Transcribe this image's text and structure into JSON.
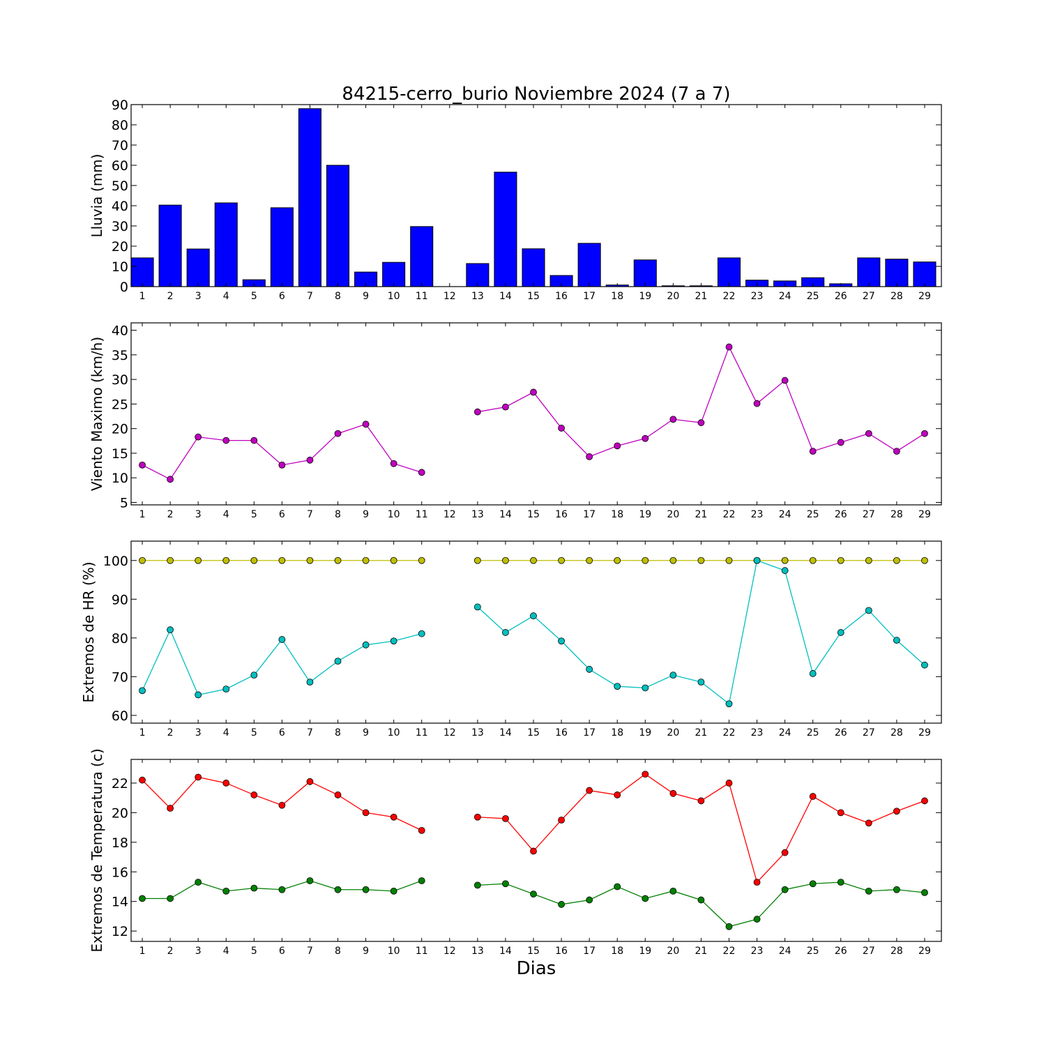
{
  "figure": {
    "title": "84215-cerro_burio Noviembre 2024  (7 a 7)",
    "xlabel": "Dias"
  },
  "chart_data": [
    {
      "type": "bar",
      "ylabel": "Lluvia (mm)",
      "ylim": [
        0,
        90
      ],
      "yticks": [
        0,
        10,
        20,
        30,
        40,
        50,
        60,
        70,
        80,
        90
      ],
      "categories": [
        1,
        2,
        3,
        4,
        5,
        6,
        7,
        8,
        9,
        10,
        11,
        12,
        13,
        14,
        15,
        16,
        17,
        18,
        19,
        20,
        21,
        22,
        23,
        24,
        25,
        26,
        27,
        28,
        29
      ],
      "color": "#0000ff",
      "values": [
        14.2,
        40.3,
        18.6,
        41.4,
        3.4,
        39.0,
        88.0,
        60.0,
        7.2,
        12.0,
        29.7,
        0,
        11.4,
        56.6,
        18.7,
        5.5,
        21.4,
        0.8,
        13.2,
        0.4,
        0.4,
        14.2,
        3.2,
        2.8,
        4.4,
        1.4,
        14.2,
        13.6,
        12.2
      ]
    },
    {
      "type": "line",
      "ylabel": "Viento Maximo (km/h)",
      "ylim": [
        4.5,
        41.5
      ],
      "yticks": [
        5,
        10,
        15,
        20,
        25,
        30,
        35,
        40
      ],
      "categories": [
        1,
        2,
        3,
        4,
        5,
        6,
        7,
        8,
        9,
        10,
        11,
        12,
        13,
        14,
        15,
        16,
        17,
        18,
        19,
        20,
        21,
        22,
        23,
        24,
        25,
        26,
        27,
        28,
        29
      ],
      "series": [
        {
          "color": "#bf00bf",
          "values": [
            12.6,
            9.7,
            18.3,
            17.6,
            17.6,
            12.6,
            13.6,
            19.0,
            20.9,
            12.9,
            11.1,
            null,
            23.4,
            24.4,
            27.4,
            20.1,
            14.3,
            16.5,
            18.0,
            21.9,
            21.2,
            36.6,
            25.1,
            29.8,
            15.4,
            17.2,
            19.0,
            15.4,
            19.0
          ]
        }
      ]
    },
    {
      "type": "line",
      "ylabel": "Extremos de HR (%)",
      "ylim": [
        58,
        105
      ],
      "yticks": [
        60,
        70,
        80,
        90,
        100
      ],
      "categories": [
        1,
        2,
        3,
        4,
        5,
        6,
        7,
        8,
        9,
        10,
        11,
        12,
        13,
        14,
        15,
        16,
        17,
        18,
        19,
        20,
        21,
        22,
        23,
        24,
        25,
        26,
        27,
        28,
        29
      ],
      "series": [
        {
          "color": "#bfbf00",
          "values": [
            100,
            100,
            100,
            100,
            100,
            100,
            100,
            100,
            100,
            100,
            100,
            null,
            100,
            100,
            100,
            100,
            100,
            100,
            100,
            100,
            100,
            100,
            100,
            100,
            100,
            100,
            100,
            100,
            100
          ]
        },
        {
          "color": "#00bfbf",
          "values": [
            66.4,
            82.1,
            65.3,
            66.8,
            70.4,
            79.6,
            68.6,
            74.0,
            78.2,
            79.2,
            81.1,
            null,
            88.0,
            81.4,
            85.7,
            79.2,
            71.9,
            67.5,
            67.1,
            70.4,
            68.6,
            63.0,
            100,
            97.4,
            70.8,
            81.4,
            87.1,
            79.4,
            73.0
          ]
        }
      ]
    },
    {
      "type": "line",
      "ylabel": "Extremos de Temperatura (c)",
      "ylim": [
        11.3,
        23.6
      ],
      "yticks": [
        12,
        14,
        16,
        18,
        20,
        22
      ],
      "categories": [
        1,
        2,
        3,
        4,
        5,
        6,
        7,
        8,
        9,
        10,
        11,
        12,
        13,
        14,
        15,
        16,
        17,
        18,
        19,
        20,
        21,
        22,
        23,
        24,
        25,
        26,
        27,
        28,
        29
      ],
      "series": [
        {
          "color": "#ff0000",
          "values": [
            22.2,
            20.3,
            22.4,
            22.0,
            21.2,
            20.5,
            22.1,
            21.2,
            20.0,
            19.7,
            18.8,
            null,
            19.7,
            19.6,
            17.4,
            19.5,
            21.5,
            21.2,
            22.6,
            21.3,
            20.8,
            22.0,
            15.3,
            17.3,
            21.1,
            20.0,
            19.3,
            20.1,
            20.8
          ]
        },
        {
          "color": "#008000",
          "values": [
            14.2,
            14.2,
            15.3,
            14.7,
            14.9,
            14.8,
            15.4,
            14.8,
            14.8,
            14.7,
            15.4,
            null,
            15.1,
            15.2,
            14.5,
            13.8,
            14.1,
            15.0,
            14.2,
            14.7,
            14.1,
            12.3,
            12.8,
            14.8,
            15.2,
            15.3,
            14.7,
            14.8,
            14.6
          ]
        }
      ]
    }
  ]
}
